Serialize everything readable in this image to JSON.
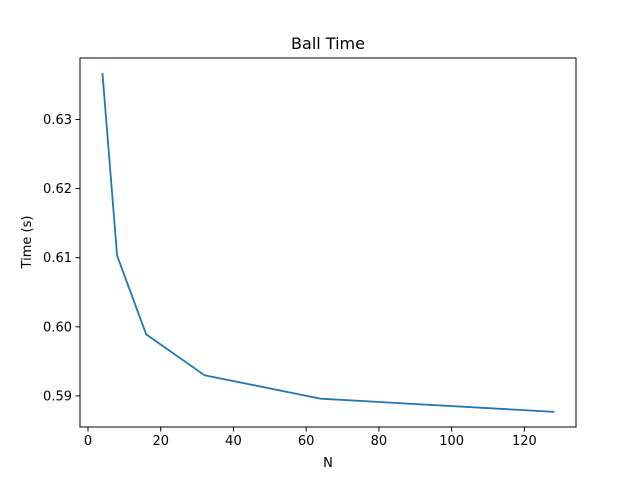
{
  "chart_data": {
    "type": "line",
    "title": "Ball Time",
    "xlabel": "N",
    "ylabel": "Time (s)",
    "xlim": [
      -2.2,
      134.2
    ],
    "ylim": [
      0.5855,
      0.6389
    ],
    "xticks": [
      0,
      20,
      40,
      60,
      80,
      100,
      120
    ],
    "yticks": [
      0.59,
      0.6,
      0.61,
      0.62,
      0.63
    ],
    "ytick_labels": [
      "0.59",
      "0.60",
      "0.61",
      "0.62",
      "0.63"
    ],
    "grid": false,
    "series": [
      {
        "color": "#1f77b4",
        "x": [
          4,
          8,
          16,
          32,
          64,
          128
        ],
        "y": [
          0.6366,
          0.6103,
          0.5989,
          0.593,
          0.5896,
          0.5877
        ]
      }
    ]
  }
}
